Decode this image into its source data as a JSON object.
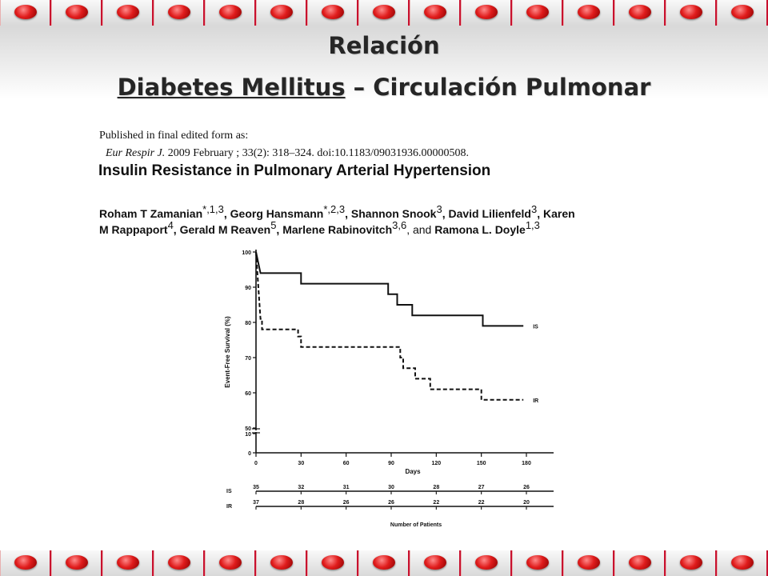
{
  "slide": {
    "title_line1": "Relación",
    "title_line2_underlined": "Diabetes Mellitus",
    "title_line2_rest": " – Circulación Pulmonar"
  },
  "paper": {
    "published_note": "Published in final edited form as:",
    "citation": "Eur Respir J. 2009 February ; 33(2): 318–324. doi:10.1183/09031936.00000508.",
    "title": "Insulin Resistance in Pulmonary Arterial Hypertension",
    "authors_line1": [
      {
        "name": "Roham T Zamanian",
        "sup": "*,1,3",
        "sep": ", "
      },
      {
        "name": "Georg Hansmann",
        "sup": "*,2,3",
        "sep": ", "
      },
      {
        "name": "Shannon Snook",
        "sup": "3",
        "sep": ", "
      },
      {
        "name": "David Lilienfeld",
        "sup": "3",
        "sep": ", "
      },
      {
        "name": "Karen",
        "sup": "",
        "sep": ""
      }
    ],
    "authors_line2": [
      {
        "name": "M Rappaport",
        "sup": "4",
        "sep": ", "
      },
      {
        "name": "Gerald M Reaven",
        "sup": "5",
        "sep": ", "
      },
      {
        "name": "Marlene Rabinovitch",
        "sup": "3,6",
        "sep": ", and "
      },
      {
        "name": "Ramona L. Doyle",
        "sup": "1,3",
        "sep": ""
      }
    ]
  },
  "chart_data": {
    "type": "line",
    "ylabel": "Event-Free Survival (%)",
    "xlabel": "Days",
    "x_ticks": [
      0,
      30,
      60,
      90,
      120,
      150,
      180
    ],
    "y_ticks_upper": [
      50,
      60,
      70,
      80,
      90,
      100
    ],
    "y_ticks_lower": [
      0,
      10
    ],
    "ylim": [
      0,
      100
    ],
    "xlim": [
      0,
      180
    ],
    "series": [
      {
        "name": "IS",
        "style": "solid",
        "steps": [
          [
            0,
            100
          ],
          [
            3,
            94
          ],
          [
            30,
            94
          ],
          [
            30,
            91
          ],
          [
            88,
            91
          ],
          [
            88,
            88
          ],
          [
            94,
            88
          ],
          [
            94,
            85
          ],
          [
            104,
            85
          ],
          [
            104,
            82
          ],
          [
            151,
            82
          ],
          [
            151,
            79
          ],
          [
            178,
            79
          ]
        ]
      },
      {
        "name": "IR",
        "style": "dashed",
        "steps": [
          [
            0,
            100
          ],
          [
            3,
            81
          ],
          [
            4,
            81
          ],
          [
            4,
            78
          ],
          [
            28,
            78
          ],
          [
            28,
            76
          ],
          [
            30,
            76
          ],
          [
            30,
            73
          ],
          [
            96,
            73
          ],
          [
            96,
            70
          ],
          [
            98,
            70
          ],
          [
            98,
            67
          ],
          [
            106,
            67
          ],
          [
            106,
            64
          ],
          [
            116,
            64
          ],
          [
            116,
            61
          ],
          [
            150,
            61
          ],
          [
            150,
            58
          ],
          [
            178,
            58
          ]
        ]
      }
    ],
    "risk_table": {
      "title": "Number of Patients",
      "days": [
        0,
        30,
        60,
        90,
        120,
        150,
        180
      ],
      "rows": [
        {
          "label": "IS",
          "values": [
            "35",
            "32",
            "31",
            "30",
            "28",
            "27",
            "26"
          ]
        },
        {
          "label": "IR",
          "values": [
            "37",
            "28",
            "26",
            "26",
            "22",
            "22",
            "20"
          ]
        }
      ]
    }
  }
}
